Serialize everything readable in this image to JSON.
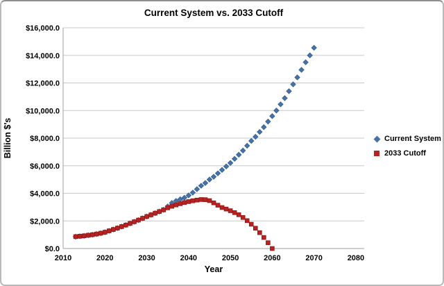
{
  "chart_data": {
    "type": "scatter",
    "title": "Current System vs. 2033 Cutoff",
    "xlabel": "Year",
    "ylabel": "Billion $'s",
    "xlim": [
      2010,
      2082
    ],
    "ylim": [
      0,
      16000
    ],
    "grid": "horizontal",
    "legend_position": "right",
    "x_ticks": [
      2010,
      2020,
      2030,
      2040,
      2050,
      2060,
      2070,
      2080
    ],
    "y_ticks": [
      {
        "value": 0,
        "label": "$0.0"
      },
      {
        "value": 2000,
        "label": "$2,000.0"
      },
      {
        "value": 4000,
        "label": "$4,000.0"
      },
      {
        "value": 6000,
        "label": "$6,000.0"
      },
      {
        "value": 8000,
        "label": "$8,000.0"
      },
      {
        "value": 10000,
        "label": "$10,000.0"
      },
      {
        "value": 12000,
        "label": "$12,000.0"
      },
      {
        "value": 14000,
        "label": "$14,000.0"
      },
      {
        "value": 16000,
        "label": "$16,000.0"
      }
    ],
    "series": [
      {
        "name": "Current System",
        "marker": "diamond",
        "color": "#4573A7",
        "edge_color": "#38618f",
        "start_year": 2013,
        "values": [
          860,
          890,
          920,
          960,
          1000,
          1050,
          1110,
          1180,
          1280,
          1380,
          1480,
          1590,
          1700,
          1820,
          1940,
          2060,
          2190,
          2320,
          2440,
          2560,
          2680,
          2810,
          3050,
          3300,
          3450,
          3570,
          3680,
          3850,
          4050,
          4300,
          4550,
          4750,
          5000,
          5200,
          5450,
          5700,
          5950,
          6200,
          6500,
          6800,
          7100,
          7450,
          7800,
          8100,
          8450,
          8800,
          9200,
          9600,
          10000,
          10450,
          10900,
          11400,
          11900,
          12400,
          12950,
          13500,
          14000,
          14550
        ]
      },
      {
        "name": "2033 Cutoff",
        "marker": "square",
        "color": "#B82221",
        "edge_color": "#8f1717",
        "start_year": 2013,
        "values": [
          860,
          890,
          920,
          960,
          1000,
          1050,
          1110,
          1180,
          1280,
          1380,
          1480,
          1590,
          1700,
          1820,
          1940,
          2060,
          2190,
          2320,
          2440,
          2560,
          2680,
          2800,
          2950,
          3060,
          3160,
          3250,
          3330,
          3400,
          3460,
          3510,
          3550,
          3540,
          3470,
          3310,
          3140,
          2970,
          2860,
          2740,
          2600,
          2450,
          2250,
          2020,
          1760,
          1470,
          1150,
          800,
          420,
          0
        ]
      }
    ],
    "colors": {
      "gridline": "#c8c8c8",
      "axis_line": "#9f9f9f",
      "text": "#000000"
    }
  }
}
